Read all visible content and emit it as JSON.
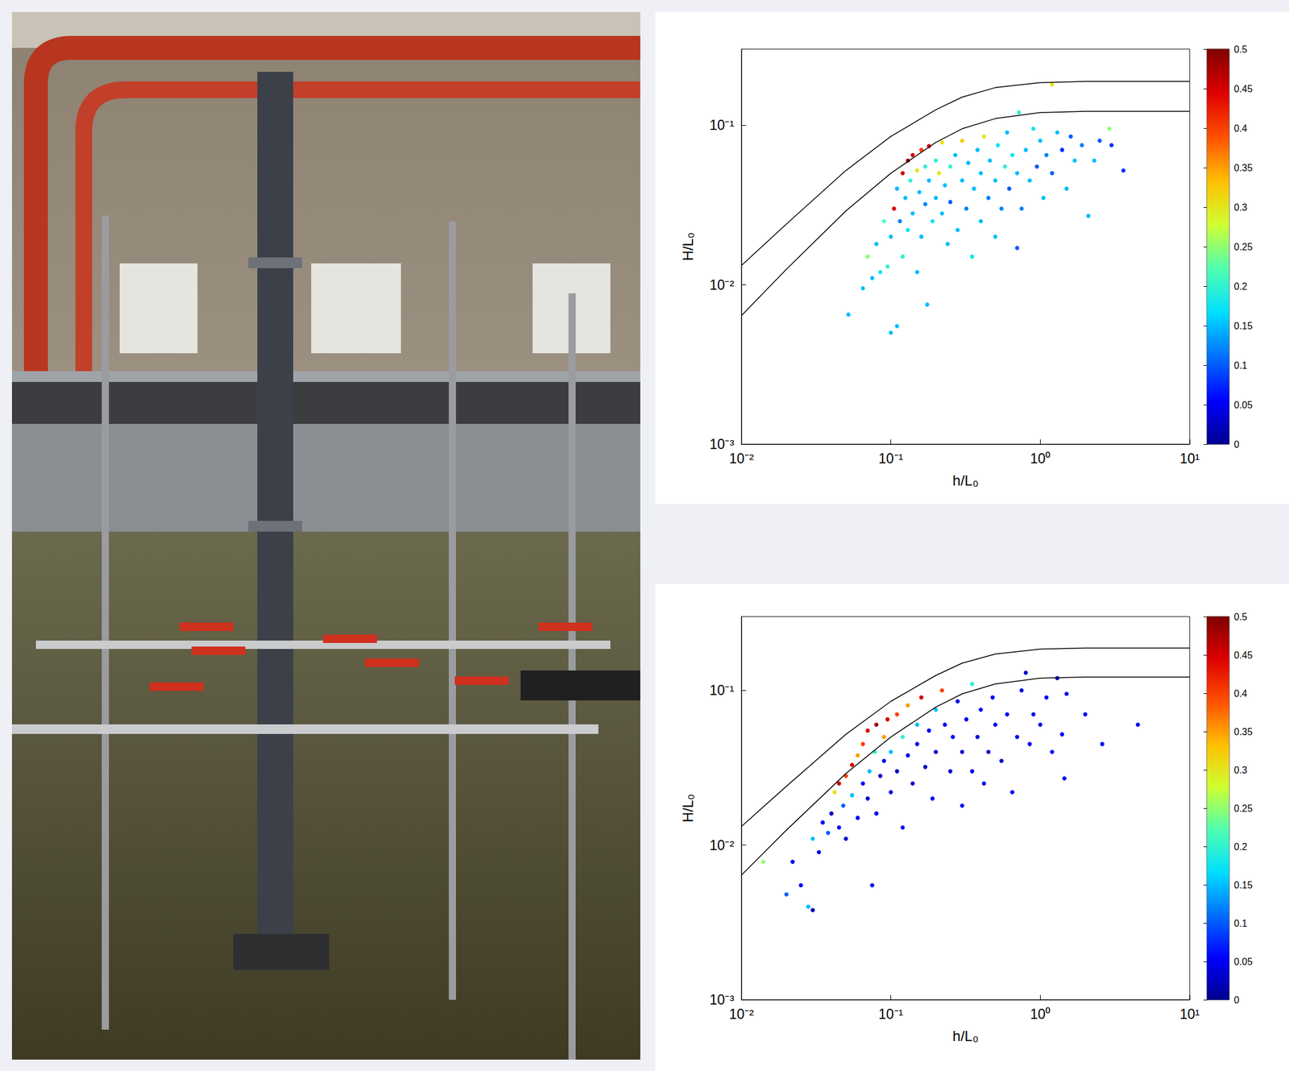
{
  "chart_data": [
    {
      "type": "scatter",
      "xlabel": "h/L₀",
      "ylabel": "H/L₀",
      "log": true,
      "grid": false,
      "marker": "circle",
      "xlim": [
        0.01,
        10
      ],
      "ylim": [
        0.001,
        0.3
      ],
      "xticks": [
        {
          "value": 0.01,
          "label": "10⁻²"
        },
        {
          "value": 0.1,
          "label": "10⁻¹"
        },
        {
          "value": 1,
          "label": "10⁰"
        },
        {
          "value": 10,
          "label": "10¹"
        }
      ],
      "yticks": [
        {
          "value": 0.001,
          "label": "10⁻³"
        },
        {
          "value": 0.01,
          "label": "10⁻²"
        },
        {
          "value": 0.1,
          "label": "10⁻¹"
        }
      ],
      "colorbar": {
        "range": [
          0,
          0.5
        ],
        "ticks": [
          0,
          0.05,
          0.1,
          0.15,
          0.2,
          0.25,
          0.3,
          0.35,
          0.4,
          0.45,
          0.5
        ]
      },
      "series": [
        {
          "type": "line",
          "color": "#000000",
          "line_style": "solid",
          "x": [
            0.01,
            0.02,
            0.05,
            0.1,
            0.2,
            0.3,
            0.5,
            1,
            2,
            10
          ],
          "values": [
            0.0132,
            0.024,
            0.052,
            0.085,
            0.125,
            0.15,
            0.172,
            0.185,
            0.188,
            0.188
          ]
        },
        {
          "type": "line",
          "color": "#000000",
          "line_style": "solid",
          "x": [
            0.01,
            0.02,
            0.05,
            0.1,
            0.2,
            0.3,
            0.5,
            1,
            2,
            10
          ],
          "values": [
            0.0064,
            0.0125,
            0.029,
            0.05,
            0.078,
            0.095,
            0.11,
            0.12,
            0.122,
            0.122
          ]
        },
        {
          "type": "scatter",
          "x": [
            0.052,
            0.065,
            0.07,
            0.075,
            0.08,
            0.085,
            0.09,
            0.095,
            0.1,
            0.1,
            0.105,
            0.11,
            0.11,
            0.115,
            0.12,
            0.12,
            0.125,
            0.13,
            0.13,
            0.135,
            0.14,
            0.14,
            0.15,
            0.15,
            0.155,
            0.16,
            0.16,
            0.17,
            0.17,
            0.175,
            0.18,
            0.18,
            0.19,
            0.2,
            0.2,
            0.21,
            0.22,
            0.22,
            0.23,
            0.24,
            0.25,
            0.25,
            0.27,
            0.28,
            0.3,
            0.3,
            0.32,
            0.33,
            0.35,
            0.36,
            0.38,
            0.4,
            0.4,
            0.42,
            0.45,
            0.46,
            0.5,
            0.5,
            0.52,
            0.55,
            0.58,
            0.6,
            0.62,
            0.65,
            0.7,
            0.7,
            0.72,
            0.75,
            0.8,
            0.85,
            0.9,
            0.95,
            1.0,
            1.05,
            1.1,
            1.2,
            1.2,
            1.3,
            1.4,
            1.5,
            1.6,
            1.7,
            1.9,
            2.1,
            2.3,
            2.5,
            2.9,
            3.0,
            3.6
          ],
          "values": [
            0.0065,
            0.0095,
            0.015,
            0.011,
            0.018,
            0.012,
            0.025,
            0.013,
            0.005,
            0.02,
            0.03,
            0.0055,
            0.04,
            0.025,
            0.05,
            0.015,
            0.035,
            0.06,
            0.022,
            0.045,
            0.028,
            0.065,
            0.012,
            0.052,
            0.038,
            0.07,
            0.02,
            0.032,
            0.055,
            0.0075,
            0.045,
            0.074,
            0.025,
            0.06,
            0.035,
            0.05,
            0.028,
            0.078,
            0.042,
            0.018,
            0.055,
            0.033,
            0.065,
            0.022,
            0.045,
            0.08,
            0.03,
            0.058,
            0.015,
            0.04,
            0.07,
            0.025,
            0.05,
            0.085,
            0.035,
            0.06,
            0.045,
            0.02,
            0.075,
            0.03,
            0.055,
            0.09,
            0.04,
            0.065,
            0.017,
            0.05,
            0.12,
            0.03,
            0.07,
            0.045,
            0.095,
            0.055,
            0.08,
            0.035,
            0.065,
            0.18,
            0.05,
            0.09,
            0.07,
            0.04,
            0.085,
            0.06,
            0.075,
            0.027,
            0.06,
            0.08,
            0.095,
            0.075,
            0.052
          ],
          "color_values": [
            0.15,
            0.15,
            0.25,
            0.15,
            0.15,
            0.18,
            0.22,
            0.2,
            0.15,
            0.15,
            0.45,
            0.15,
            0.15,
            0.12,
            0.45,
            0.2,
            0.15,
            0.48,
            0.18,
            0.2,
            0.15,
            0.45,
            0.15,
            0.3,
            0.15,
            0.4,
            0.15,
            0.12,
            0.2,
            0.15,
            0.15,
            0.45,
            0.18,
            0.2,
            0.15,
            0.3,
            0.15,
            0.3,
            0.15,
            0.15,
            0.2,
            0.1,
            0.15,
            0.15,
            0.15,
            0.32,
            0.12,
            0.15,
            0.18,
            0.15,
            0.15,
            0.15,
            0.15,
            0.3,
            0.12,
            0.15,
            0.15,
            0.15,
            0.18,
            0.12,
            0.2,
            0.15,
            0.1,
            0.18,
            0.1,
            0.15,
            0.2,
            0.12,
            0.15,
            0.15,
            0.18,
            0.1,
            0.15,
            0.15,
            0.12,
            0.3,
            0.1,
            0.15,
            0.08,
            0.15,
            0.1,
            0.15,
            0.12,
            0.15,
            0.15,
            0.1,
            0.25,
            0.08,
            0.08
          ]
        }
      ]
    },
    {
      "type": "scatter",
      "xlabel": "h/L₀",
      "ylabel": "H/L₀",
      "log": true,
      "grid": false,
      "marker": "circle",
      "xlim": [
        0.01,
        10
      ],
      "ylim": [
        0.001,
        0.3
      ],
      "xticks": [
        {
          "value": 0.01,
          "label": "10⁻²"
        },
        {
          "value": 0.1,
          "label": "10⁻¹"
        },
        {
          "value": 1,
          "label": "10⁰"
        },
        {
          "value": 10,
          "label": "10¹"
        }
      ],
      "yticks": [
        {
          "value": 0.001,
          "label": "10⁻³"
        },
        {
          "value": 0.01,
          "label": "10⁻²"
        },
        {
          "value": 0.1,
          "label": "10⁻¹"
        }
      ],
      "colorbar": {
        "range": [
          0,
          0.5
        ],
        "ticks": [
          0,
          0.05,
          0.1,
          0.15,
          0.2,
          0.25,
          0.3,
          0.35,
          0.4,
          0.45,
          0.5
        ]
      },
      "series": [
        {
          "type": "line",
          "color": "#000000",
          "line_style": "solid",
          "x": [
            0.01,
            0.02,
            0.05,
            0.1,
            0.2,
            0.3,
            0.5,
            1,
            2,
            10
          ],
          "values": [
            0.0132,
            0.024,
            0.052,
            0.085,
            0.125,
            0.15,
            0.172,
            0.185,
            0.188,
            0.188
          ]
        },
        {
          "type": "line",
          "color": "#000000",
          "line_style": "solid",
          "x": [
            0.01,
            0.02,
            0.05,
            0.1,
            0.2,
            0.3,
            0.5,
            1,
            2,
            10
          ],
          "values": [
            0.0064,
            0.0125,
            0.029,
            0.05,
            0.078,
            0.095,
            0.11,
            0.12,
            0.122,
            0.122
          ]
        },
        {
          "type": "scatter",
          "x": [
            0.014,
            0.02,
            0.022,
            0.025,
            0.028,
            0.03,
            0.03,
            0.033,
            0.035,
            0.038,
            0.04,
            0.042,
            0.045,
            0.045,
            0.048,
            0.05,
            0.05,
            0.055,
            0.055,
            0.06,
            0.06,
            0.065,
            0.065,
            0.07,
            0.07,
            0.072,
            0.075,
            0.078,
            0.08,
            0.08,
            0.085,
            0.09,
            0.09,
            0.095,
            0.1,
            0.1,
            0.11,
            0.11,
            0.12,
            0.12,
            0.13,
            0.13,
            0.14,
            0.15,
            0.15,
            0.16,
            0.17,
            0.18,
            0.19,
            0.2,
            0.2,
            0.22,
            0.23,
            0.25,
            0.26,
            0.28,
            0.3,
            0.3,
            0.32,
            0.35,
            0.35,
            0.38,
            0.4,
            0.42,
            0.45,
            0.48,
            0.5,
            0.55,
            0.6,
            0.65,
            0.7,
            0.75,
            0.8,
            0.85,
            0.9,
            1.0,
            1.1,
            1.2,
            1.3,
            1.4,
            1.45,
            1.5,
            2.0,
            2.6,
            4.5
          ],
          "values": [
            0.0078,
            0.0048,
            0.0078,
            0.0055,
            0.004,
            0.0038,
            0.011,
            0.009,
            0.014,
            0.012,
            0.016,
            0.022,
            0.013,
            0.025,
            0.018,
            0.028,
            0.011,
            0.021,
            0.033,
            0.015,
            0.038,
            0.025,
            0.045,
            0.055,
            0.02,
            0.03,
            0.0055,
            0.04,
            0.06,
            0.016,
            0.028,
            0.05,
            0.035,
            0.065,
            0.022,
            0.04,
            0.07,
            0.03,
            0.05,
            0.013,
            0.08,
            0.038,
            0.025,
            0.06,
            0.045,
            0.09,
            0.032,
            0.055,
            0.02,
            0.075,
            0.04,
            0.1,
            0.06,
            0.03,
            0.05,
            0.085,
            0.018,
            0.04,
            0.065,
            0.11,
            0.03,
            0.05,
            0.075,
            0.025,
            0.04,
            0.09,
            0.06,
            0.035,
            0.07,
            0.022,
            0.05,
            0.1,
            0.13,
            0.045,
            0.07,
            0.06,
            0.09,
            0.04,
            0.12,
            0.052,
            0.027,
            0.095,
            0.07,
            0.045,
            0.06
          ],
          "color_values": [
            0.25,
            0.1,
            0.05,
            0.05,
            0.15,
            0.02,
            0.15,
            0.05,
            0.05,
            0.1,
            0.03,
            0.3,
            0.05,
            0.45,
            0.1,
            0.4,
            0.03,
            0.15,
            0.45,
            0.05,
            0.35,
            0.05,
            0.4,
            0.45,
            0.03,
            0.15,
            0.05,
            0.2,
            0.48,
            0.05,
            0.03,
            0.35,
            0.05,
            0.45,
            0.05,
            0.15,
            0.4,
            0.03,
            0.2,
            0.05,
            0.35,
            0.05,
            0.03,
            0.15,
            0.05,
            0.45,
            0.03,
            0.05,
            0.05,
            0.15,
            0.03,
            0.4,
            0.05,
            0.03,
            0.05,
            0.05,
            0.05,
            0.03,
            0.05,
            0.2,
            0.05,
            0.03,
            0.05,
            0.05,
            0.03,
            0.05,
            0.05,
            0.03,
            0.05,
            0.05,
            0.05,
            0.05,
            0.03,
            0.05,
            0.05,
            0.05,
            0.05,
            0.05,
            0.03,
            0.05,
            0.05,
            0.05,
            0.05,
            0.05,
            0.05
          ]
        }
      ]
    }
  ]
}
